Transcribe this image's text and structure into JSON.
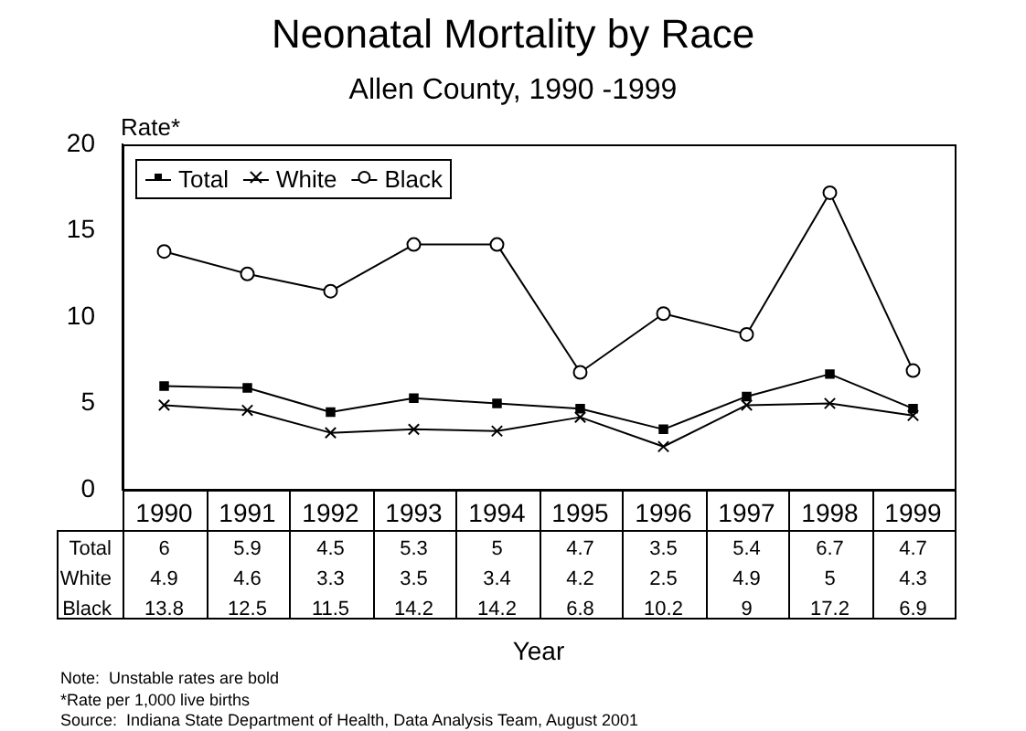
{
  "chart_data": {
    "type": "line",
    "title": "Neonatal Mortality by Race",
    "subtitle": "Allen County, 1990 -1999",
    "xlabel": "Year",
    "ylabel": "Rate*",
    "categories": [
      "1990",
      "1991",
      "1992",
      "1993",
      "1994",
      "1995",
      "1996",
      "1997",
      "1998",
      "1999"
    ],
    "series": [
      {
        "name": "Total",
        "color": "#000000",
        "marker": "square",
        "values": [
          6,
          5.9,
          4.5,
          5.3,
          5,
          4.7,
          3.5,
          5.4,
          6.7,
          4.7
        ]
      },
      {
        "name": "White",
        "color": "#000000",
        "marker": "cross",
        "values": [
          4.9,
          4.6,
          3.3,
          3.5,
          3.4,
          4.2,
          2.5,
          4.9,
          5,
          4.3
        ]
      },
      {
        "name": "Black",
        "color": "#000000",
        "marker": "circle",
        "values": [
          13.8,
          12.5,
          11.5,
          14.2,
          14.2,
          6.8,
          10.2,
          9,
          17.2,
          6.9
        ]
      }
    ],
    "ylim": [
      0,
      20
    ],
    "yticks": [
      0,
      5,
      10,
      15,
      20
    ],
    "grid": false,
    "legend": "top left",
    "data_labels": true,
    "annotations": [
      "Note:  Unstable rates are bold",
      "*Rate per 1,000 live births",
      "Source:  Indiana State Department of Health, Data Analysis Team, August 2001"
    ]
  }
}
